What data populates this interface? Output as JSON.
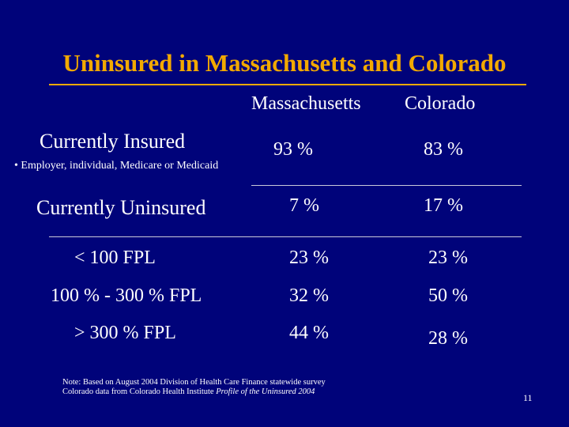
{
  "slide": {
    "title": "Uninsured in Massachusetts and Colorado",
    "page_number": "11",
    "colors": {
      "background": "#00037a",
      "title": "#f2a900",
      "text": "#ffffff"
    }
  },
  "columns": {
    "massachusetts": "Massachusetts",
    "colorado": "Colorado"
  },
  "rows": {
    "insured": {
      "label": "Currently Insured",
      "sublabel": "• Employer, individual, Medicare or Medicaid",
      "massachusetts": "93 %",
      "colorado": "83 %"
    },
    "uninsured": {
      "label": "Currently Uninsured",
      "massachusetts": "7 %",
      "colorado": "17 %"
    },
    "fpl_low": {
      "label": "< 100 FPL",
      "massachusetts": "23 %",
      "colorado": "23 %"
    },
    "fpl_mid": {
      "label": "100 % - 300 % FPL",
      "massachusetts": "32 %",
      "colorado": "50 %"
    },
    "fpl_high": {
      "label": "> 300 % FPL",
      "massachusetts": "44 %",
      "colorado": "28 %"
    }
  },
  "note": {
    "line1": "Note: Based on August 2004 Division of Health Care Finance statewide survey",
    "line2_prefix": "Colorado data from Colorado Health Institute ",
    "line2_italic": "Profile of the Uninsured 2004"
  }
}
